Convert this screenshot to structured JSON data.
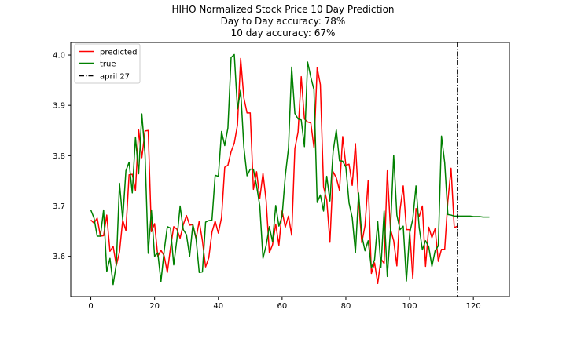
{
  "chart_data": {
    "type": "line",
    "title_lines": [
      "HIHO Normalized Stock Price 10 Day Prediction",
      "Day to Day accuracy: 78%",
      "10 day accuracy: 67%"
    ],
    "xlabel": "",
    "ylabel": "",
    "xlim": [
      -6.3,
      131.3
    ],
    "ylim": [
      3.52,
      4.025
    ],
    "xticks": [
      0,
      20,
      40,
      60,
      80,
      100,
      120
    ],
    "yticks": [
      3.6,
      3.7,
      3.8,
      3.9,
      4.0
    ],
    "ytick_labels": [
      "3.6",
      "3.7",
      "3.8",
      "3.9",
      "4.0"
    ],
    "grid": false,
    "legend_position": "top-left",
    "series": [
      {
        "name": "predicted",
        "color": "#ff0000",
        "x_start": 0,
        "values": [
          3.672,
          3.666,
          3.676,
          3.64,
          3.641,
          3.682,
          3.61,
          3.62,
          3.582,
          3.609,
          3.672,
          3.651,
          3.762,
          3.763,
          3.731,
          3.851,
          3.796,
          3.849,
          3.85,
          3.649,
          3.665,
          3.6,
          3.612,
          3.601,
          3.568,
          3.617,
          3.659,
          3.654,
          3.636,
          3.663,
          3.681,
          3.662,
          3.663,
          3.635,
          3.67,
          3.631,
          3.579,
          3.597,
          3.648,
          3.67,
          3.646,
          3.677,
          3.777,
          3.781,
          3.808,
          3.825,
          3.861,
          3.993,
          3.915,
          3.885,
          3.885,
          3.733,
          3.768,
          3.715,
          3.765,
          3.71,
          3.607,
          3.623,
          3.664,
          3.622,
          3.69,
          3.658,
          3.68,
          3.642,
          3.814,
          3.847,
          3.957,
          3.873,
          3.867,
          3.865,
          3.816,
          3.975,
          3.941,
          3.738,
          3.712,
          3.628,
          3.768,
          3.756,
          3.731,
          3.838,
          3.781,
          3.783,
          3.741,
          3.824,
          3.709,
          3.627,
          3.661,
          3.751,
          3.566,
          3.587,
          3.546,
          3.595,
          3.586,
          3.77,
          3.654,
          3.631,
          3.581,
          3.693,
          3.74,
          3.653,
          3.653,
          3.556,
          3.695,
          3.679,
          3.7,
          3.58,
          3.658,
          3.637,
          3.655,
          3.59,
          3.614,
          3.614,
          3.71,
          3.775,
          3.657,
          3.66
        ]
      },
      {
        "name": "true",
        "color": "#008000",
        "x_start": 0,
        "values": [
          3.692,
          3.676,
          3.64,
          3.64,
          3.692,
          3.57,
          3.596,
          3.544,
          3.585,
          3.745,
          3.673,
          3.77,
          3.787,
          3.726,
          3.837,
          3.764,
          3.883,
          3.803,
          3.606,
          3.692,
          3.6,
          3.607,
          3.55,
          3.611,
          3.659,
          3.656,
          3.583,
          3.634,
          3.7,
          3.653,
          3.643,
          3.6,
          3.663,
          3.636,
          3.568,
          3.569,
          3.668,
          3.671,
          3.672,
          3.761,
          3.759,
          3.848,
          3.82,
          3.855,
          3.995,
          4.001,
          3.893,
          3.93,
          3.817,
          3.76,
          3.773,
          3.773,
          3.74,
          3.7,
          3.596,
          3.622,
          3.659,
          3.629,
          3.701,
          3.66,
          3.68,
          3.76,
          3.815,
          3.976,
          3.884,
          3.873,
          3.871,
          3.818,
          3.986,
          3.956,
          3.931,
          3.707,
          3.722,
          3.69,
          3.759,
          3.71,
          3.808,
          3.851,
          3.79,
          3.789,
          3.777,
          3.706,
          3.677,
          3.607,
          3.726,
          3.641,
          3.611,
          3.631,
          3.577,
          3.593,
          3.669,
          3.578,
          3.69,
          3.56,
          3.653,
          3.801,
          3.682,
          3.653,
          3.66,
          3.551,
          3.646,
          3.674,
          3.74,
          3.657,
          3.613,
          3.631,
          3.619,
          3.58,
          3.611,
          3.621,
          3.839,
          3.786,
          3.683,
          3.682,
          3.68,
          3.68,
          3.68,
          3.68,
          3.68,
          3.68,
          3.679,
          3.679,
          3.679,
          3.678,
          3.678,
          3.678
        ]
      },
      {
        "name": "april 27",
        "color": "#000000",
        "style": "dashdot",
        "vline_x": 115
      }
    ]
  }
}
